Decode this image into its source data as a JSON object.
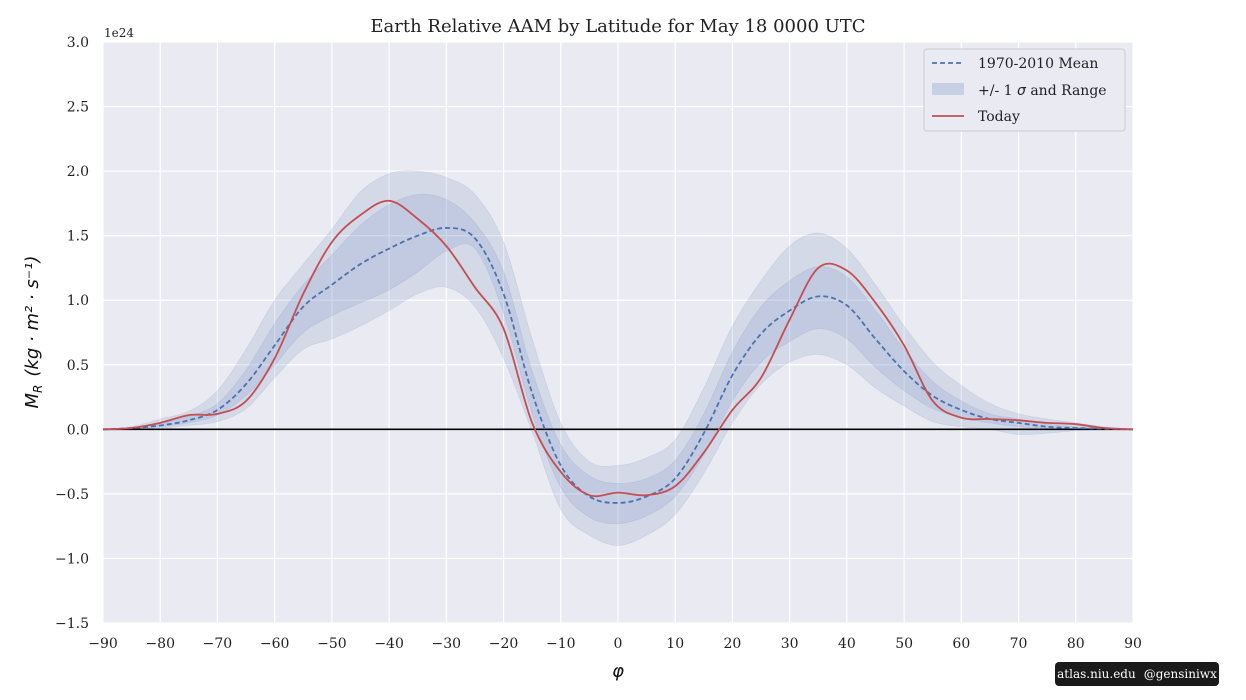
{
  "credit": {
    "site": "atlas.niu.edu",
    "handle": "@gensiniwx"
  },
  "chart_data": {
    "type": "line",
    "title": "Earth Relative AAM by Latitude for May 18 0000 UTC",
    "xlabel": "φ",
    "ylabel_main": "M",
    "ylabel_sub": "R",
    "ylabel_units": "(kg · m² · s⁻¹)",
    "y_offset_label": "1e24",
    "xlim": [
      -90,
      90
    ],
    "ylim": [
      -1.5,
      3.0
    ],
    "x_ticks": [
      -90,
      -80,
      -70,
      -60,
      -50,
      -40,
      -30,
      -20,
      -10,
      0,
      10,
      20,
      30,
      40,
      50,
      60,
      70,
      80,
      90
    ],
    "x_tick_labels": [
      "−90",
      "−80",
      "−70",
      "−60",
      "−50",
      "−40",
      "−30",
      "−20",
      "−10",
      "0",
      "10",
      "20",
      "30",
      "40",
      "50",
      "60",
      "70",
      "80",
      "90"
    ],
    "y_ticks": [
      -1.5,
      -1.0,
      -0.5,
      0.0,
      0.5,
      1.0,
      1.5,
      2.0,
      2.5,
      3.0
    ],
    "y_tick_labels": [
      "−1.5",
      "−1.0",
      "−0.5",
      "0.0",
      "0.5",
      "1.0",
      "1.5",
      "2.0",
      "2.5",
      "3.0"
    ],
    "grid": true,
    "legend_position": "top-right",
    "legend": {
      "mean_label": "1970-2010 Mean",
      "band_label_prefix": "+/- 1 ",
      "band_label_sigma": "σ",
      "band_label_suffix": " and Range",
      "today_label": "Today"
    },
    "x": [
      -90,
      -85,
      -80,
      -75,
      -70,
      -65,
      -60,
      -55,
      -50,
      -45,
      -40,
      -35,
      -30,
      -25,
      -20,
      -15,
      -10,
      -5,
      0,
      5,
      10,
      15,
      20,
      25,
      30,
      35,
      40,
      45,
      50,
      55,
      60,
      65,
      70,
      75,
      80,
      85,
      90
    ],
    "series": [
      {
        "name": "1970-2010 Mean",
        "values": [
          0,
          0.01,
          0.03,
          0.07,
          0.15,
          0.35,
          0.65,
          0.95,
          1.12,
          1.28,
          1.4,
          1.5,
          1.56,
          1.48,
          1.05,
          0.28,
          -0.28,
          -0.52,
          -0.57,
          -0.52,
          -0.38,
          -0.03,
          0.42,
          0.74,
          0.92,
          1.03,
          0.96,
          0.7,
          0.45,
          0.26,
          0.15,
          0.08,
          0.05,
          0.02,
          0.01,
          0.005,
          0
        ]
      },
      {
        "name": "Today",
        "values": [
          0,
          0.01,
          0.05,
          0.11,
          0.12,
          0.22,
          0.55,
          1.05,
          1.45,
          1.66,
          1.77,
          1.63,
          1.42,
          1.1,
          0.78,
          0.05,
          -0.33,
          -0.51,
          -0.49,
          -0.51,
          -0.44,
          -0.18,
          0.15,
          0.4,
          0.85,
          1.25,
          1.23,
          0.98,
          0.65,
          0.22,
          0.09,
          0.08,
          0.07,
          0.05,
          0.04,
          0.01,
          0
        ]
      }
    ],
    "bands": [
      {
        "name": "+/- 1 σ",
        "lower": [
          0,
          0.005,
          0.02,
          0.05,
          0.11,
          0.26,
          0.5,
          0.75,
          0.88,
          0.98,
          1.08,
          1.22,
          1.38,
          1.4,
          0.9,
          0.12,
          -0.45,
          -0.68,
          -0.73,
          -0.67,
          -0.52,
          -0.2,
          0.22,
          0.52,
          0.68,
          0.78,
          0.7,
          0.48,
          0.3,
          0.16,
          0.09,
          0.05,
          0.02,
          0.01,
          0.005,
          0.002,
          0
        ],
        "upper": [
          0,
          0.015,
          0.05,
          0.1,
          0.2,
          0.46,
          0.82,
          1.12,
          1.35,
          1.58,
          1.74,
          1.82,
          1.78,
          1.6,
          1.22,
          0.45,
          -0.12,
          -0.36,
          -0.42,
          -0.38,
          -0.24,
          0.12,
          0.6,
          0.95,
          1.15,
          1.26,
          1.18,
          0.92,
          0.62,
          0.37,
          0.22,
          0.12,
          0.08,
          0.04,
          0.02,
          0.008,
          0
        ]
      },
      {
        "name": "Range",
        "lower": [
          0,
          0,
          0.01,
          0.03,
          0.06,
          0.16,
          0.4,
          0.62,
          0.7,
          0.8,
          0.92,
          1.05,
          1.1,
          0.95,
          0.55,
          -0.02,
          -0.62,
          -0.82,
          -0.9,
          -0.82,
          -0.66,
          -0.34,
          0.05,
          0.35,
          0.52,
          0.58,
          0.5,
          0.32,
          0.18,
          0.06,
          0.02,
          0.0,
          -0.04,
          -0.03,
          -0.01,
          0,
          0
        ],
        "upper": [
          0,
          0.02,
          0.08,
          0.14,
          0.3,
          0.62,
          1.0,
          1.28,
          1.55,
          1.84,
          1.98,
          2.0,
          1.95,
          1.82,
          1.45,
          0.7,
          0.05,
          -0.25,
          -0.28,
          -0.22,
          -0.08,
          0.32,
          0.8,
          1.15,
          1.42,
          1.52,
          1.4,
          1.12,
          0.8,
          0.52,
          0.34,
          0.2,
          0.12,
          0.08,
          0.05,
          0.02,
          0
        ]
      }
    ],
    "colors": {
      "mean": "#4c72b0",
      "band": "#4c72b0",
      "today": "#c44e52",
      "plot_bg": "#eaeaf2",
      "grid": "#ffffff",
      "zero_line": "#000000"
    }
  }
}
